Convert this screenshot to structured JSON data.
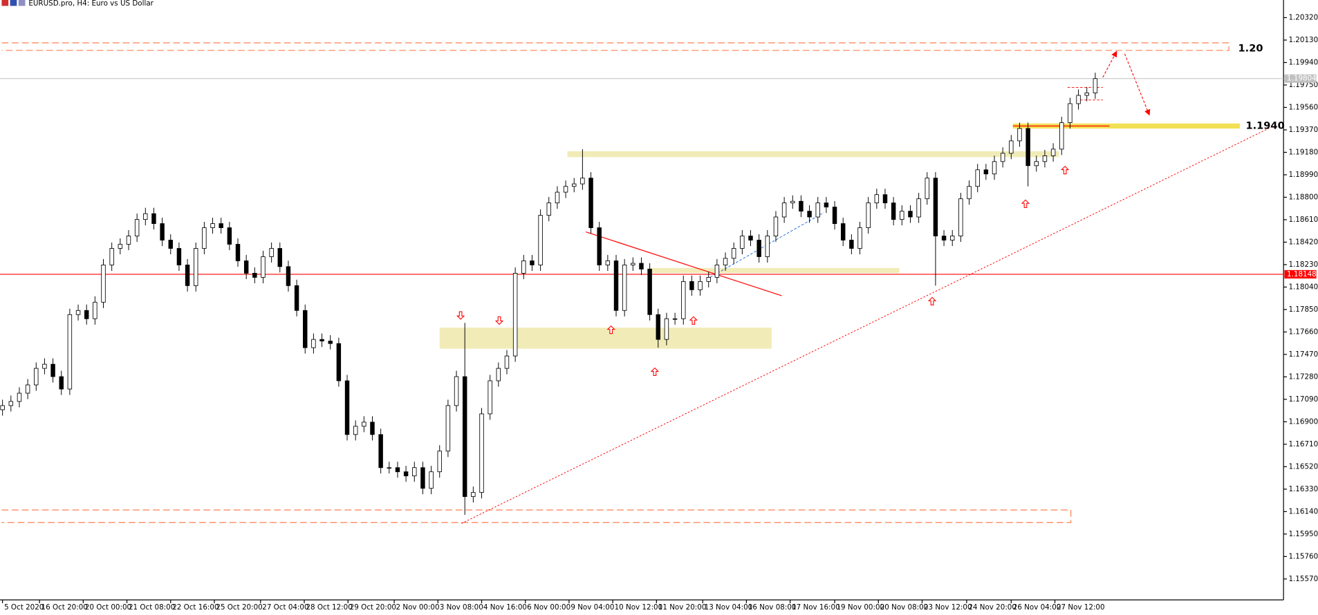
{
  "chart_data": {
    "type": "candlestick",
    "title": "EURUSD.pro, H4:  Euro vs US Dollar",
    "up_color": "#ffffff",
    "down_color": "#000000",
    "open": [
      1.17002,
      1.17037,
      1.17072,
      1.17142,
      1.17212,
      1.17352,
      1.17387,
      1.17282,
      1.17177,
      1.17807,
      1.17842,
      1.17772,
      1.17912,
      1.18227,
      1.18367,
      1.18402,
      1.18472,
      1.18612,
      1.18661,
      1.18577,
      1.18437,
      1.18367,
      1.18227,
      1.18052,
      1.18367,
      1.18542,
      1.18577,
      1.18542,
      1.18402,
      1.18262,
      1.18157,
      1.18122,
      1.18297,
      1.18367,
      1.18213,
      1.18052,
      1.17842,
      1.17527,
      1.17597,
      1.17583,
      1.17562,
      1.17247,
      1.16792,
      1.16862,
      1.16897,
      1.16792,
      1.16512,
      1.16512,
      1.16477,
      1.16442,
      1.16512,
      1.16337,
      1.16477,
      1.16652,
      1.17037,
      1.17282,
      1.16267,
      1.16302,
      1.16967,
      1.17247,
      1.17352,
      1.17457,
      1.18157,
      1.18262,
      1.18227,
      1.18647,
      1.18752,
      1.18843,
      1.18892,
      1.18913,
      1.18962,
      1.18542,
      1.18227,
      1.18262,
      1.17842,
      1.18227,
      1.18241,
      1.18192,
      1.17807,
      1.17597,
      1.17772,
      1.17772,
      1.18087,
      1.18017,
      1.18087,
      1.18122,
      1.18227,
      1.18283,
      1.18367,
      1.18472,
      1.18437,
      1.18297,
      1.18472,
      1.18633,
      1.18752,
      1.18766,
      1.18682,
      1.18633,
      1.18752,
      1.18717,
      1.18577,
      1.18437,
      1.18367,
      1.18542,
      1.18752,
      1.18822,
      1.18752,
      1.18612,
      1.18682,
      1.18633,
      1.18787,
      1.18962,
      1.18472,
      1.18437,
      1.18472,
      1.18787,
      1.18892,
      1.19032,
      1.18997,
      1.19102,
      1.19172,
      1.19277,
      1.19382,
      1.19067,
      1.19102,
      1.19151,
      1.19207,
      1.19431,
      1.19592,
      1.19662,
      1.19683
    ],
    "high": [
      1.17087,
      1.17122,
      1.17192,
      1.17262,
      1.17402,
      1.17437,
      1.17437,
      1.17332,
      1.17857,
      1.17892,
      1.17892,
      1.17962,
      1.18277,
      1.18417,
      1.18452,
      1.18522,
      1.18662,
      1.18711,
      1.18711,
      1.18627,
      1.18487,
      1.18417,
      1.18277,
      1.18417,
      1.18592,
      1.18627,
      1.18627,
      1.18592,
      1.18452,
      1.18312,
      1.18207,
      1.18347,
      1.18417,
      1.18417,
      1.18263,
      1.18102,
      1.17892,
      1.17647,
      1.17647,
      1.17633,
      1.17612,
      1.17297,
      1.16912,
      1.16947,
      1.16947,
      1.16842,
      1.16562,
      1.16562,
      1.16527,
      1.16562,
      1.16562,
      1.16527,
      1.16702,
      1.17087,
      1.17332,
      1.17737,
      1.16352,
      1.17017,
      1.17297,
      1.17402,
      1.17507,
      1.18207,
      1.18312,
      1.18312,
      1.18697,
      1.18802,
      1.18893,
      1.18942,
      1.18963,
      1.19207,
      1.19012,
      1.18592,
      1.18312,
      1.18312,
      1.18277,
      1.18291,
      1.18291,
      1.18242,
      1.17857,
      1.17822,
      1.17822,
      1.18137,
      1.18137,
      1.18137,
      1.18172,
      1.18277,
      1.18333,
      1.18417,
      1.18522,
      1.18522,
      1.18487,
      1.18522,
      1.18683,
      1.18802,
      1.18816,
      1.18816,
      1.18732,
      1.18802,
      1.18802,
      1.18767,
      1.18627,
      1.18487,
      1.18592,
      1.18802,
      1.18872,
      1.18872,
      1.18802,
      1.18732,
      1.18732,
      1.18837,
      1.19012,
      1.19012,
      1.18522,
      1.18522,
      1.18837,
      1.18942,
      1.19082,
      1.19082,
      1.19152,
      1.19222,
      1.19327,
      1.19432,
      1.19432,
      1.19152,
      1.19201,
      1.19257,
      1.19481,
      1.19642,
      1.19712,
      1.19733,
      1.19854
    ],
    "low": [
      1.16952,
      1.16987,
      1.17022,
      1.17092,
      1.17162,
      1.17302,
      1.17232,
      1.17127,
      1.17127,
      1.17757,
      1.17722,
      1.17722,
      1.17862,
      1.18177,
      1.18317,
      1.18352,
      1.18422,
      1.18562,
      1.18527,
      1.18387,
      1.18317,
      1.18177,
      1.18002,
      1.18002,
      1.18317,
      1.18492,
      1.18492,
      1.18352,
      1.18212,
      1.18107,
      1.18072,
      1.18072,
      1.18247,
      1.18163,
      1.18002,
      1.17792,
      1.17477,
      1.17477,
      1.17533,
      1.17512,
      1.17197,
      1.16742,
      1.16742,
      1.16812,
      1.16742,
      1.16462,
      1.16462,
      1.16427,
      1.16392,
      1.16392,
      1.16287,
      1.16287,
      1.16427,
      1.16602,
      1.16987,
      1.16113,
      1.16217,
      1.16252,
      1.16917,
      1.17197,
      1.17302,
      1.17407,
      1.18107,
      1.18177,
      1.18177,
      1.18597,
      1.18702,
      1.18793,
      1.18842,
      1.18863,
      1.18492,
      1.18177,
      1.18177,
      1.17792,
      1.17792,
      1.18177,
      1.18142,
      1.17757,
      1.17527,
      1.17547,
      1.17722,
      1.17722,
      1.17967,
      1.17967,
      1.18037,
      1.18072,
      1.18177,
      1.18233,
      1.18317,
      1.18387,
      1.18247,
      1.18247,
      1.18422,
      1.18583,
      1.18702,
      1.18632,
      1.18583,
      1.18583,
      1.18667,
      1.18527,
      1.18387,
      1.18317,
      1.18317,
      1.18492,
      1.18702,
      1.18702,
      1.18562,
      1.18562,
      1.18583,
      1.18583,
      1.18737,
      1.18052,
      1.18387,
      1.18387,
      1.18422,
      1.18737,
      1.18842,
      1.18947,
      1.18947,
      1.19052,
      1.19122,
      1.19227,
      1.18892,
      1.19017,
      1.19052,
      1.19101,
      1.19157,
      1.19381,
      1.19542,
      1.19612,
      1.19633
    ],
    "close": [
      1.17037,
      1.17072,
      1.17142,
      1.17212,
      1.17352,
      1.17387,
      1.17282,
      1.17177,
      1.17807,
      1.17842,
      1.17772,
      1.17912,
      1.18227,
      1.18367,
      1.18402,
      1.18472,
      1.18612,
      1.18661,
      1.18577,
      1.18437,
      1.18367,
      1.18227,
      1.18052,
      1.18367,
      1.18542,
      1.18577,
      1.18542,
      1.18402,
      1.18262,
      1.18157,
      1.18122,
      1.18297,
      1.18367,
      1.18213,
      1.18052,
      1.17842,
      1.17527,
      1.17597,
      1.17583,
      1.17562,
      1.17247,
      1.16792,
      1.16862,
      1.16897,
      1.16792,
      1.16512,
      1.16512,
      1.16477,
      1.16442,
      1.16512,
      1.16337,
      1.16477,
      1.16652,
      1.17037,
      1.17282,
      1.16267,
      1.16302,
      1.16967,
      1.17247,
      1.17352,
      1.17457,
      1.18157,
      1.18262,
      1.18227,
      1.18647,
      1.18752,
      1.18843,
      1.18892,
      1.18913,
      1.18962,
      1.18542,
      1.18227,
      1.18262,
      1.17842,
      1.18227,
      1.18241,
      1.18192,
      1.17807,
      1.17597,
      1.17772,
      1.17772,
      1.18087,
      1.18017,
      1.18087,
      1.18122,
      1.18227,
      1.18283,
      1.18367,
      1.18472,
      1.18437,
      1.18297,
      1.18472,
      1.18633,
      1.18752,
      1.18766,
      1.18682,
      1.18633,
      1.18752,
      1.18717,
      1.18577,
      1.18437,
      1.18367,
      1.18542,
      1.18752,
      1.18822,
      1.18752,
      1.18612,
      1.18682,
      1.18633,
      1.18787,
      1.18962,
      1.18472,
      1.18437,
      1.18472,
      1.18787,
      1.18892,
      1.19032,
      1.18997,
      1.19102,
      1.19172,
      1.19277,
      1.19382,
      1.19067,
      1.19102,
      1.19151,
      1.19207,
      1.19431,
      1.19592,
      1.19662,
      1.19683,
      1.19804
    ],
    "current_price": 1.19804,
    "level_line": 1.18148,
    "annotations": [
      "1.20",
      "1.1940"
    ],
    "xlim": [
      -0.3,
      152.4
    ],
    "ylim": [
      1.15393,
      1.20469
    ],
    "xticks": [
      {
        "value": 0,
        "label": "5 Oct 2020"
      },
      {
        "value": 4.4,
        "label": "16 Oct 20:00"
      },
      {
        "value": 9.6,
        "label": "20 Oct 00:00"
      },
      {
        "value": 14.8,
        "label": "21 Oct 08:00"
      },
      {
        "value": 20,
        "label": "22 Oct 16:00"
      },
      {
        "value": 25.2,
        "label": "25 Oct 20:00"
      },
      {
        "value": 30.7,
        "label": "27 Oct 04:00"
      },
      {
        "value": 35.9,
        "label": "28 Oct 12:00"
      },
      {
        "value": 41.1,
        "label": "29 Oct 20:00"
      },
      {
        "value": 46.6,
        "label": "2 Nov 00:00"
      },
      {
        "value": 51.8,
        "label": "3 Nov 08:00"
      },
      {
        "value": 57,
        "label": "4 Nov 16:00"
      },
      {
        "value": 62.2,
        "label": "6 Nov 00:00"
      },
      {
        "value": 67.4,
        "label": "9 Nov 04:00"
      },
      {
        "value": 72.6,
        "label": "10 Nov 12:00"
      },
      {
        "value": 77.8,
        "label": "11 Nov 20:00"
      },
      {
        "value": 83.3,
        "label": "13 Nov 04:00"
      },
      {
        "value": 88.5,
        "label": "16 Nov 08:00"
      },
      {
        "value": 93.7,
        "label": "17 Nov 16:00"
      },
      {
        "value": 99,
        "label": "19 Nov 00:00"
      },
      {
        "value": 104.2,
        "label": "20 Nov 08:00"
      },
      {
        "value": 109.4,
        "label": "23 Nov 12:00"
      },
      {
        "value": 114.7,
        "label": "24 Nov 20:00"
      },
      {
        "value": 120,
        "label": "26 Nov 04:00"
      },
      {
        "value": 125.2,
        "label": "27 Nov 12:00"
      }
    ],
    "yticks": [
      {
        "value": 1.2032,
        "label": "1.20320"
      },
      {
        "value": 1.2013,
        "label": "1.20130"
      },
      {
        "value": 1.1994,
        "label": "1.19940"
      },
      {
        "value": 1.1975,
        "label": "1.19750"
      },
      {
        "value": 1.1956,
        "label": "1.19560"
      },
      {
        "value": 1.1937,
        "label": "1.19370"
      },
      {
        "value": 1.1918,
        "label": "1.19180"
      },
      {
        "value": 1.1899,
        "label": "1.18990"
      },
      {
        "value": 1.188,
        "label": "1.18800"
      },
      {
        "value": 1.1861,
        "label": "1.18610"
      },
      {
        "value": 1.1842,
        "label": "1.18420"
      },
      {
        "value": 1.1823,
        "label": "1.18230"
      },
      {
        "value": 1.1804,
        "label": "1.18040"
      },
      {
        "value": 1.1785,
        "label": "1.17850"
      },
      {
        "value": 1.1766,
        "label": "1.17660"
      },
      {
        "value": 1.1747,
        "label": "1.17470"
      },
      {
        "value": 1.1728,
        "label": "1.17280"
      },
      {
        "value": 1.1709,
        "label": "1.17090"
      },
      {
        "value": 1.169,
        "label": "1.16900"
      },
      {
        "value": 1.1671,
        "label": "1.16710"
      },
      {
        "value": 1.1652,
        "label": "1.16520"
      },
      {
        "value": 1.1633,
        "label": "1.16330"
      },
      {
        "value": 1.1614,
        "label": "1.16140"
      },
      {
        "value": 1.1595,
        "label": "1.15950"
      },
      {
        "value": 1.1576,
        "label": "1.15760"
      },
      {
        "value": 1.1557,
        "label": "1.15570"
      }
    ]
  }
}
